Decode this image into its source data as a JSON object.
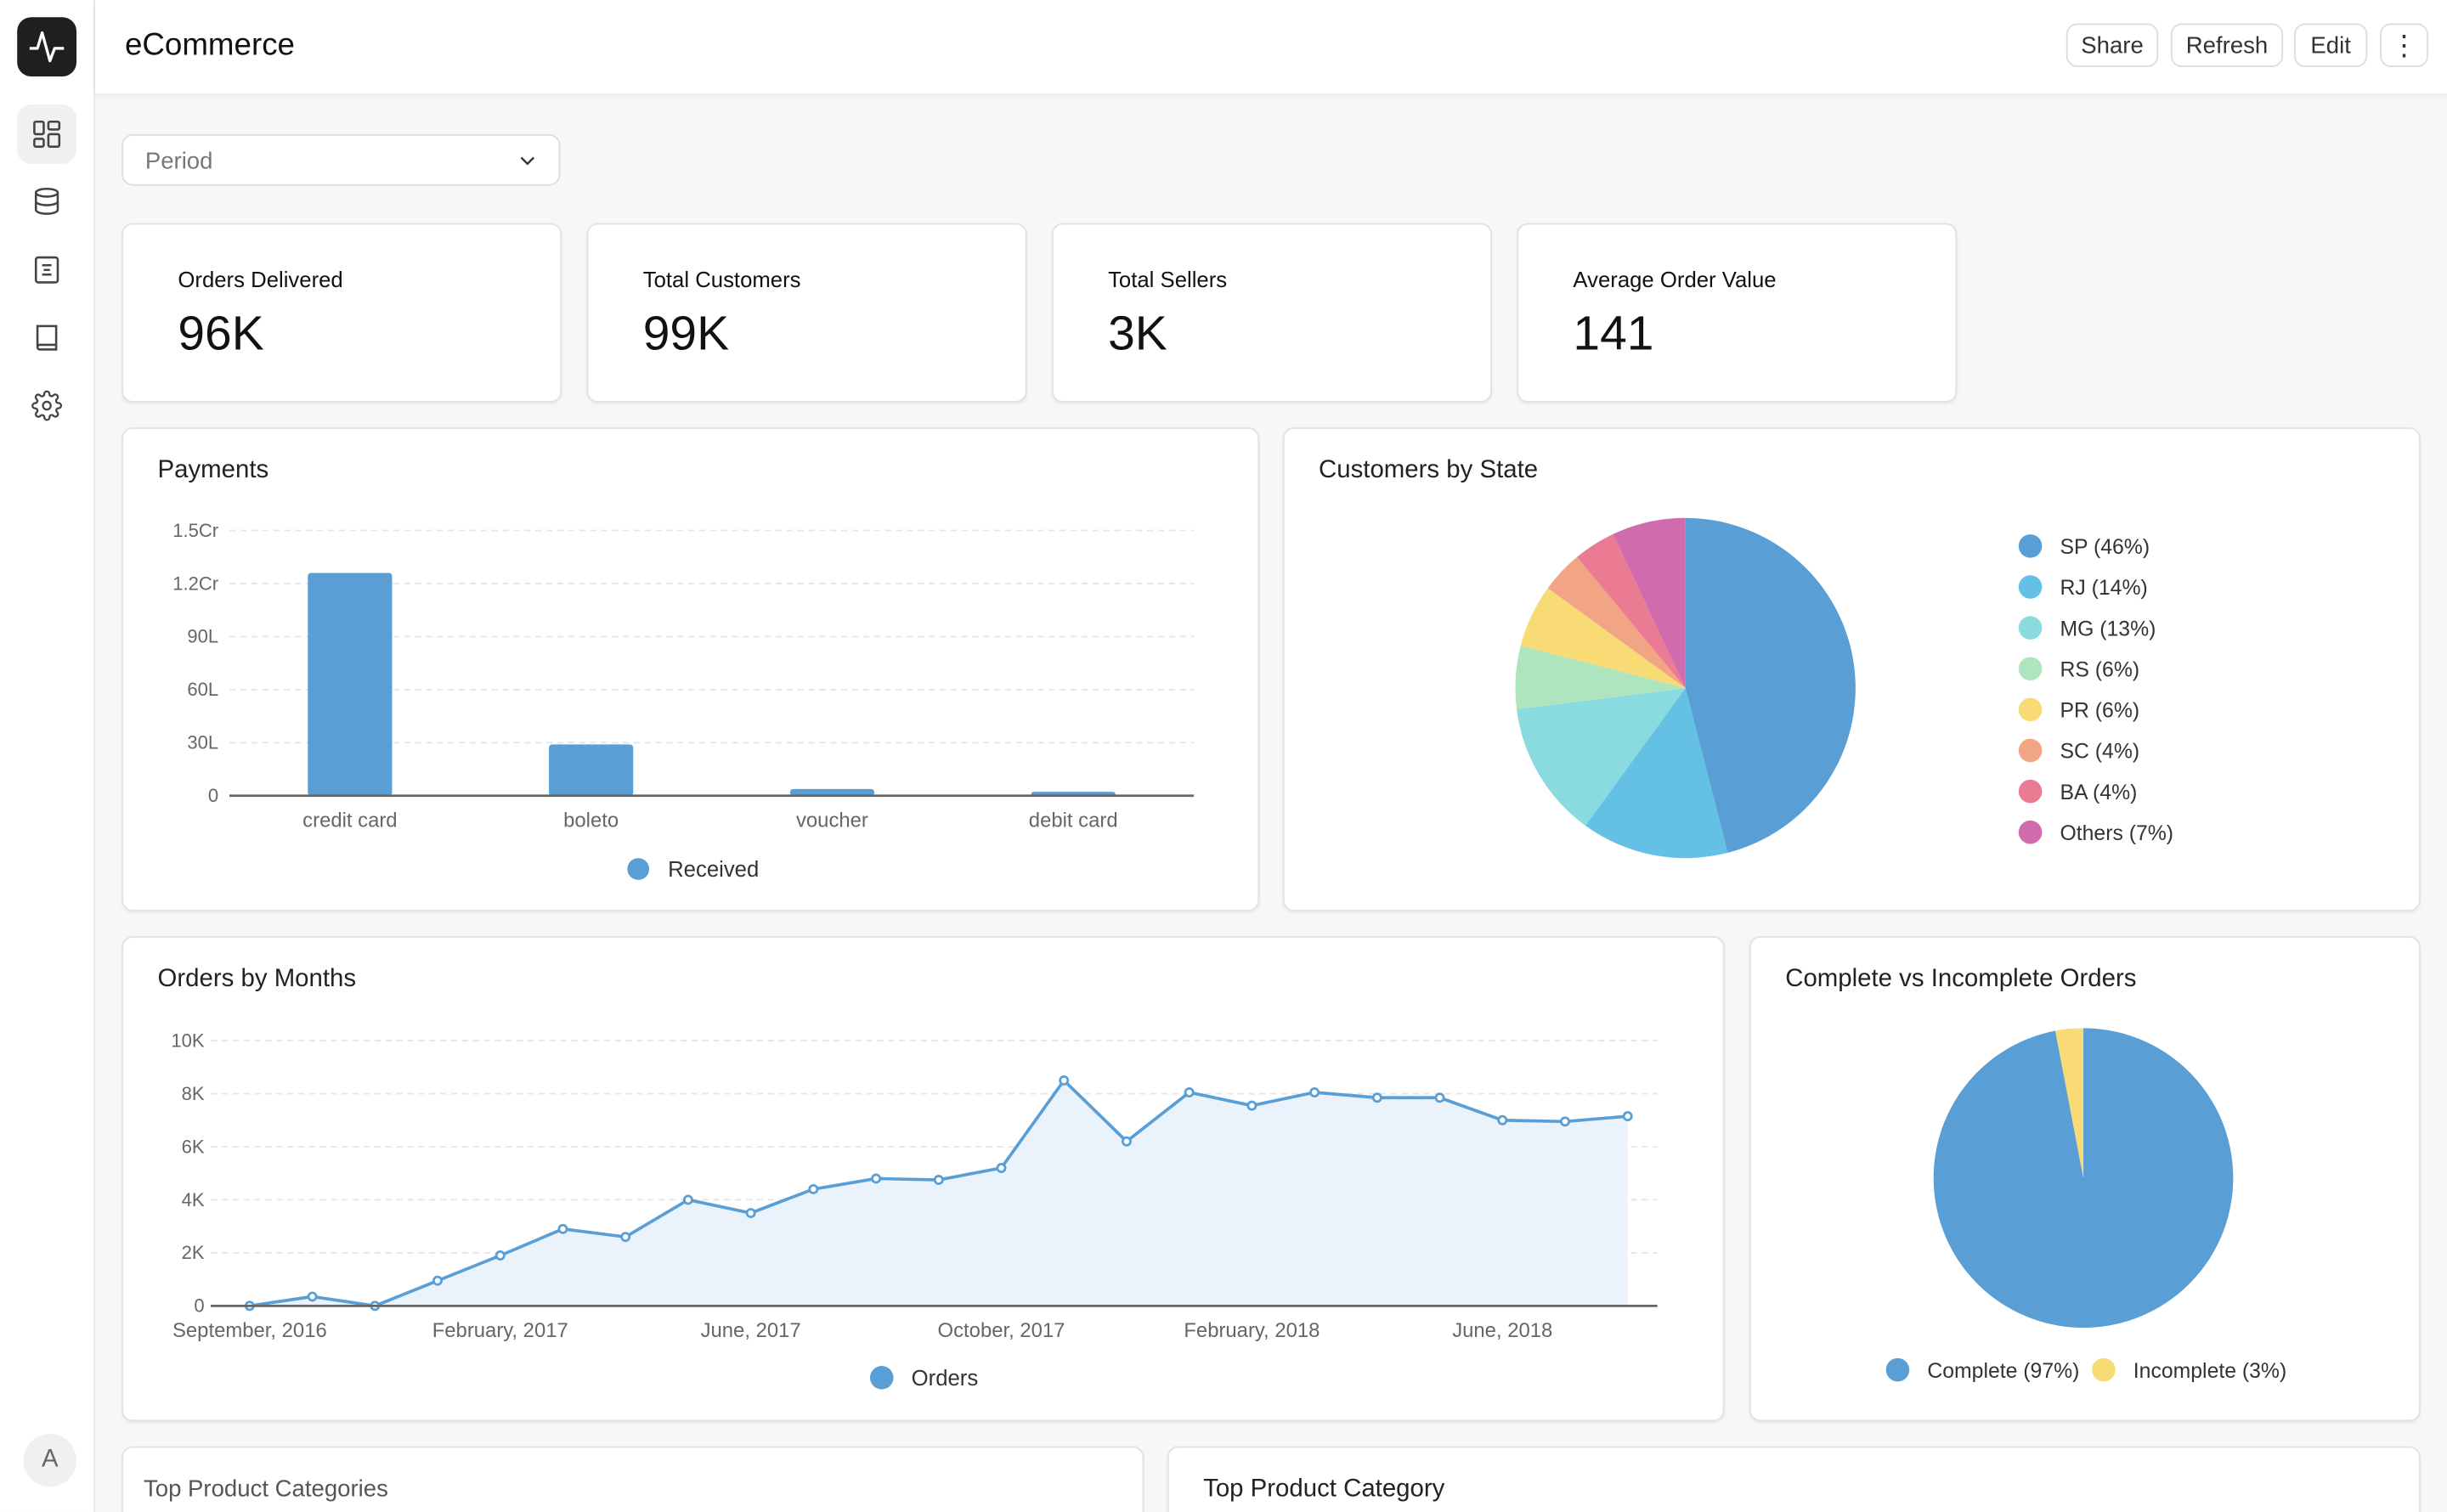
{
  "app": {
    "title": "eCommerce",
    "avatar_initial": "A"
  },
  "sidebar": {
    "items": [
      {
        "name": "dashboards",
        "icon": "dashboard-grid-icon",
        "active": true
      },
      {
        "name": "data",
        "icon": "database-icon"
      },
      {
        "name": "notebooks",
        "icon": "document-icon"
      },
      {
        "name": "docs",
        "icon": "book-icon"
      },
      {
        "name": "settings",
        "icon": "gear-icon"
      }
    ]
  },
  "header": {
    "share": "Share",
    "refresh": "Refresh",
    "edit": "Edit"
  },
  "filter": {
    "placeholder": "Period"
  },
  "kpis": [
    {
      "label": "Orders Delivered",
      "value": "96K"
    },
    {
      "label": "Total Customers",
      "value": "99K"
    },
    {
      "label": "Total Sellers",
      "value": "3K"
    },
    {
      "label": "Average Order Value",
      "value": "141"
    }
  ],
  "colors": {
    "primary": "#599fd6",
    "pie": [
      "#599fd6",
      "#64c0e4",
      "#89dbe0",
      "#aee4be",
      "#f8db74",
      "#f2a585",
      "#ea7b93",
      "#d06bae"
    ],
    "incomplete": "#f8db74"
  },
  "chart_data": [
    {
      "id": "payments",
      "type": "bar",
      "title": "Payments",
      "categories": [
        "credit card",
        "boleto",
        "voucher",
        "debit card"
      ],
      "series": [
        {
          "name": "Received",
          "values": [
            12600000,
            2900000,
            380000,
            220000
          ]
        }
      ],
      "yticks": [
        {
          "v": 0,
          "label": "0"
        },
        {
          "v": 3000000,
          "label": "30L"
        },
        {
          "v": 6000000,
          "label": "60L"
        },
        {
          "v": 9000000,
          "label": "90L"
        },
        {
          "v": 12000000,
          "label": "1.2Cr"
        },
        {
          "v": 15000000,
          "label": "1.5Cr"
        }
      ],
      "ylim": [
        0,
        15000000
      ],
      "legend": "bottom"
    },
    {
      "id": "customers_by_state",
      "type": "pie",
      "title": "Customers by State",
      "labels": [
        "SP (46%)",
        "RJ (14%)",
        "MG (13%)",
        "RS (6%)",
        "PR (6%)",
        "SC (4%)",
        "BA (4%)",
        "Others (7%)"
      ],
      "values": [
        46,
        14,
        13,
        6,
        6,
        4,
        4,
        7
      ],
      "legend": "right"
    },
    {
      "id": "orders_by_months",
      "type": "area",
      "title": "Orders by Months",
      "x": [
        "Sep 2016",
        "Oct 2016",
        "Dec 2016",
        "Jan 2017",
        "Feb 2017",
        "Mar 2017",
        "Apr 2017",
        "May 2017",
        "Jun 2017",
        "Jul 2017",
        "Aug 2017",
        "Sep 2017",
        "Oct 2017",
        "Nov 2017",
        "Dec 2017",
        "Jan 2018",
        "Feb 2018",
        "Mar 2018",
        "Apr 2018",
        "May 2018",
        "Jun 2018",
        "Jul 2018",
        "Aug 2018"
      ],
      "series": [
        {
          "name": "Orders",
          "values": [
            0,
            350,
            0,
            950,
            1900,
            2900,
            2600,
            4000,
            3500,
            4400,
            4800,
            4750,
            5200,
            8500,
            6200,
            8050,
            7550,
            8050,
            7850,
            7850,
            7000,
            6950,
            7150
          ]
        }
      ],
      "xticks": [
        {
          "i": 0,
          "label": "September, 2016"
        },
        {
          "i": 4,
          "label": "February, 2017"
        },
        {
          "i": 8,
          "label": "June, 2017"
        },
        {
          "i": 12,
          "label": "October, 2017"
        },
        {
          "i": 16,
          "label": "February, 2018"
        },
        {
          "i": 20,
          "label": "June, 2018"
        }
      ],
      "yticks": [
        {
          "v": 0,
          "label": "0"
        },
        {
          "v": 2000,
          "label": "2K"
        },
        {
          "v": 4000,
          "label": "4K"
        },
        {
          "v": 6000,
          "label": "6K"
        },
        {
          "v": 8000,
          "label": "8K"
        },
        {
          "v": 10000,
          "label": "10K"
        }
      ],
      "ylim": [
        0,
        10000
      ],
      "legend": "bottom"
    },
    {
      "id": "complete_vs_incomplete",
      "type": "pie",
      "title": "Complete vs Incomplete Orders",
      "labels": [
        "Complete (97%)",
        "Incomplete (3%)"
      ],
      "values": [
        97,
        3
      ],
      "legend": "bottom"
    }
  ],
  "bottom": {
    "left_title": "Top Product Categories",
    "right_title": "Top Product Category"
  }
}
